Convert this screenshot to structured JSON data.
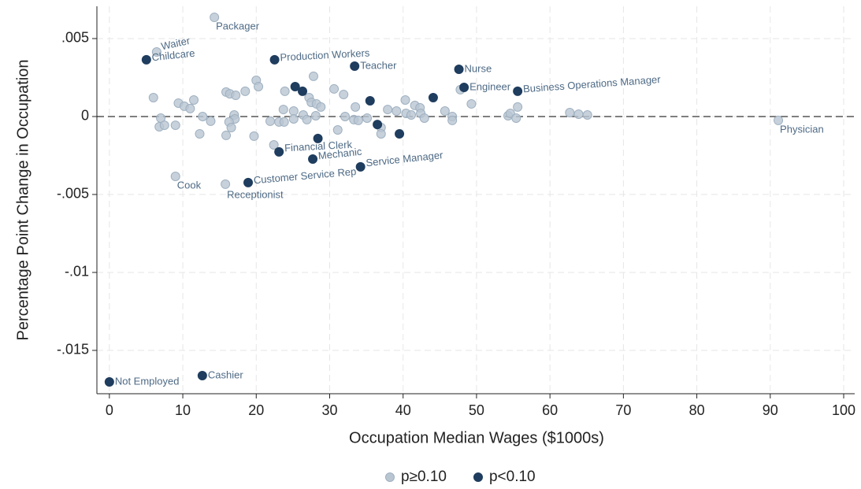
{
  "chart_data": {
    "type": "scatter",
    "x_label": "Occupation Median Wages ($1000s)",
    "y_label": "Percentage Point Change in Occupation",
    "xlim": [
      -1.7,
      101.5
    ],
    "ylim": [
      -0.01778,
      0.00707
    ],
    "xticks": [
      0,
      10,
      20,
      30,
      40,
      50,
      60,
      70,
      80,
      90,
      100
    ],
    "yticks": [
      {
        "value": 0.005,
        "label": ".005"
      },
      {
        "value": 0,
        "label": "0"
      },
      {
        "value": -0.005,
        "label": "-.005"
      },
      {
        "value": -0.01,
        "label": "-.01"
      },
      {
        "value": -0.015,
        "label": "-.015"
      }
    ],
    "grid": true,
    "hline": 0,
    "legend": "bottom",
    "series": [
      {
        "name": "p≥0.10",
        "color": "#b9c6d2",
        "x": [
          6.44,
          14.3,
          9.0,
          15.8,
          91.1,
          6.0,
          9.4,
          10.2,
          11.0,
          11.5,
          7.0,
          6.8,
          7.5,
          9.0,
          12.7,
          13.8,
          12.3,
          15.9,
          16.4,
          17.2,
          18.5,
          20.0,
          20.3,
          17.0,
          17.1,
          16.3,
          16.6,
          15.9,
          19.7,
          21.9,
          23.1,
          23.8,
          22.4,
          23.7,
          23.9,
          25.1,
          25.1,
          26.4,
          26.9,
          27.2,
          27.5,
          27.8,
          28.2,
          28.8,
          28.1,
          30.6,
          31.9,
          32.1,
          33.5,
          33.3,
          33.9,
          31.1,
          35.1,
          37.0,
          37.0,
          37.9,
          39.1,
          40.3,
          40.4,
          41.1,
          41.6,
          42.3,
          42.4,
          42.9,
          45.7,
          46.7,
          46.7,
          47.8,
          49.3,
          54.3,
          54.6,
          55.4,
          55.6,
          62.7,
          63.9,
          65.1
        ],
        "values": [
          0.00414,
          0.00636,
          -0.00384,
          -0.00434,
          -0.00025,
          0.00121,
          0.00086,
          0.00066,
          0.00051,
          0.00106,
          -0.0001,
          -0.00066,
          -0.00056,
          -0.00056,
          0,
          -0.0003,
          -0.00111,
          0.00157,
          0.00146,
          0.00136,
          0.00162,
          0.00232,
          0.00192,
          0.0001,
          -0.00015,
          -0.00035,
          -0.00071,
          -0.00121,
          -0.00126,
          -0.0003,
          -0.00035,
          -0.00035,
          -0.00182,
          0.00045,
          0.00162,
          0.00035,
          -0.00015,
          0.0001,
          -0.0002,
          0.00121,
          0.00091,
          0.00258,
          0.00081,
          0.00061,
          5e-05,
          0.00177,
          0.00141,
          0,
          0.00061,
          -0.0002,
          -0.00025,
          -0.00086,
          -0.0001,
          -0.00071,
          -0.00111,
          0.00045,
          0.00035,
          0.00106,
          0.0002,
          0.0001,
          0.00071,
          0.00056,
          0.0002,
          -0.0001,
          0.00035,
          0,
          -0.00025,
          0.00172,
          0.00081,
          5e-05,
          0.0002,
          -0.0001,
          0.00061,
          0.00025,
          0.00015,
          0.0001
        ],
        "labels": [
          "Waiter",
          "Packager",
          "Cook",
          "Receptionist",
          "Physician",
          null,
          null,
          null,
          null,
          null,
          null,
          null,
          null,
          null,
          null,
          null,
          null,
          null,
          null,
          null,
          null,
          null,
          null,
          null,
          null,
          null,
          null,
          null,
          null,
          null,
          null,
          null,
          null,
          null,
          null,
          null,
          null,
          null,
          null,
          null,
          null,
          null,
          null,
          null,
          null,
          null,
          null,
          null,
          null,
          null,
          null,
          null,
          null,
          null,
          null,
          null,
          null,
          null,
          null,
          null,
          null,
          null,
          null,
          null,
          null,
          null,
          null,
          null,
          null,
          null,
          null,
          null,
          null,
          null,
          null,
          null
        ]
      },
      {
        "name": "p<0.10",
        "color": "#1f3d5e",
        "x": [
          0,
          12.66,
          5.04,
          22.5,
          33.4,
          47.6,
          48.3,
          55.6,
          23.1,
          27.7,
          34.2,
          18.9,
          25.3,
          26.3,
          35.5,
          44.1,
          36.5,
          39.5,
          28.4
        ],
        "values": [
          -0.01702,
          -0.01662,
          0.00364,
          0.00364,
          0.00323,
          0.00303,
          0.00187,
          0.00162,
          -0.00227,
          -0.00273,
          -0.00323,
          -0.00424,
          0.00192,
          0.00162,
          0.00101,
          0.00121,
          -0.00051,
          -0.00111,
          -0.00141
        ],
        "labels": [
          "Not Employed",
          "Cashier",
          "Childcare",
          "Production Workers",
          "Teacher",
          "Nurse",
          "Engineer",
          "Business Operations Manager",
          "Financial Clerk",
          "Mechanic",
          "Service Manager",
          "Customer Service Rep",
          null,
          null,
          null,
          null,
          null,
          null,
          null
        ]
      }
    ]
  }
}
